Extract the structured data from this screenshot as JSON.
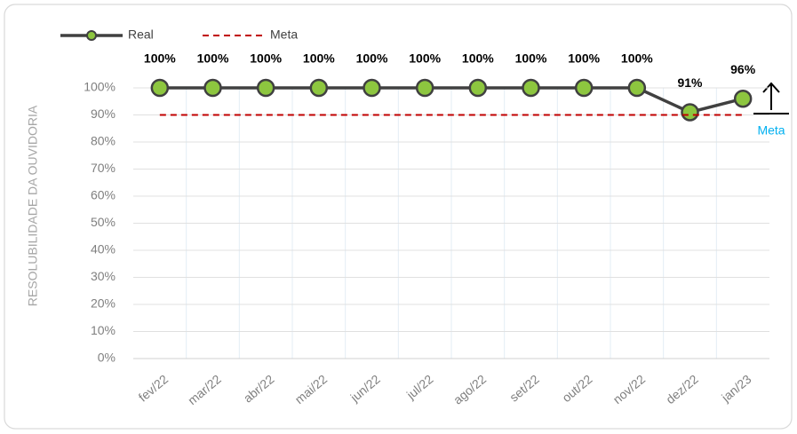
{
  "chart_data": {
    "type": "line",
    "y_label": "RESOLUBILIDADE DA OUVIDORIA",
    "categories": [
      "fev/22",
      "mar/22",
      "abr/22",
      "mai/22",
      "jun/22",
      "jul/22",
      "ago/22",
      "set/22",
      "out/22",
      "nov/22",
      "dez/22",
      "jan/23"
    ],
    "series": [
      {
        "name": "Real",
        "color": "#404040",
        "marker_color": "#8dc63f",
        "values": [
          100,
          100,
          100,
          100,
          100,
          100,
          100,
          100,
          100,
          100,
          91,
          96
        ],
        "value_labels": [
          "100%",
          "100%",
          "100%",
          "100%",
          "100%",
          "100%",
          "100%",
          "100%",
          "100%",
          "100%",
          "91%",
          "96%"
        ]
      },
      {
        "name": "Meta",
        "color": "#c00000",
        "dashed": true,
        "values": [
          90,
          90,
          90,
          90,
          90,
          90,
          90,
          90,
          90,
          90,
          90,
          90
        ]
      }
    ],
    "ylim": [
      0,
      100
    ],
    "yticks": [
      {
        "value": 0,
        "label": "0%"
      },
      {
        "value": 10,
        "label": "10%"
      },
      {
        "value": 20,
        "label": "20%"
      },
      {
        "value": 30,
        "label": "30%"
      },
      {
        "value": 40,
        "label": "40%"
      },
      {
        "value": 50,
        "label": "50%"
      },
      {
        "value": 60,
        "label": "60%"
      },
      {
        "value": 70,
        "label": "70%"
      },
      {
        "value": 80,
        "label": "80%"
      },
      {
        "value": 90,
        "label": "90%"
      },
      {
        "value": 100,
        "label": "100%"
      }
    ],
    "grid": true,
    "legend": "top-left",
    "annotation": "Meta"
  }
}
